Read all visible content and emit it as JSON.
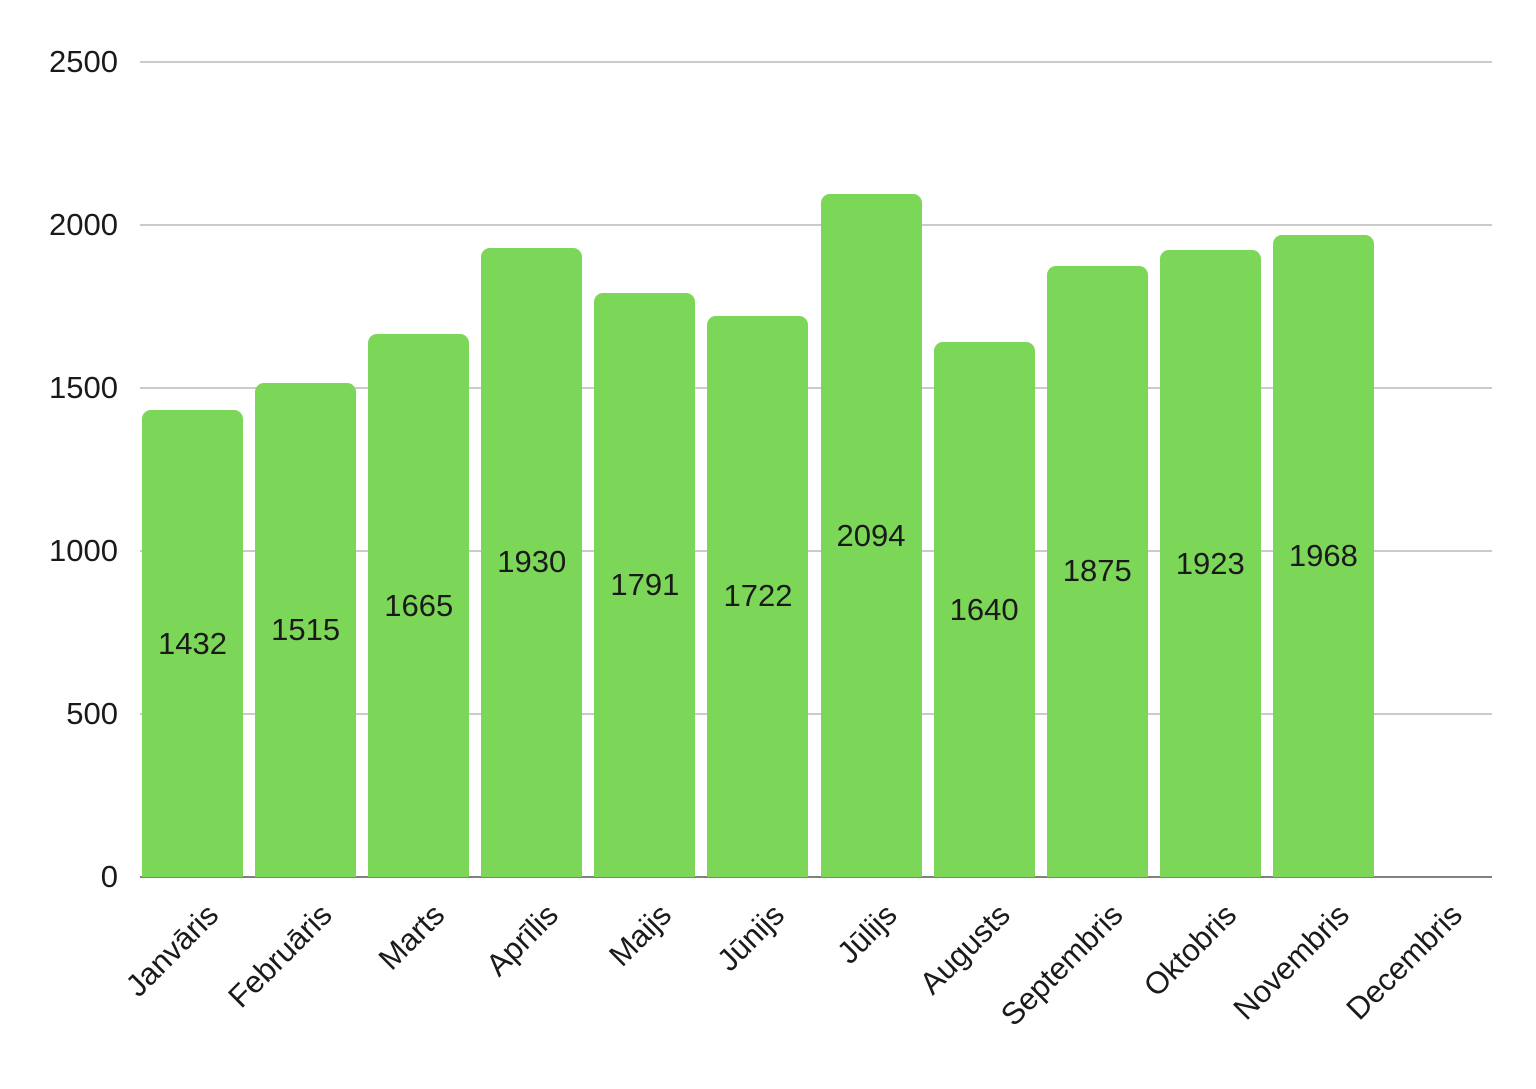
{
  "chart_data": {
    "type": "bar",
    "title": "",
    "xlabel": "",
    "ylabel": "",
    "categories": [
      "Janvāris",
      "Februāris",
      "Marts",
      "Aprīlis",
      "Maijs",
      "Jūnijs",
      "Jūlijs",
      "Augusts",
      "Septembris",
      "Oktobris",
      "Novembris",
      "Decembris"
    ],
    "values": [
      1432,
      1515,
      1665,
      1930,
      1791,
      1722,
      2094,
      1640,
      1875,
      1923,
      1968,
      null
    ],
    "data_labels": [
      "1432",
      "1515",
      "1665",
      "1930",
      "1791",
      "1722",
      "2094",
      "1640",
      "1875",
      "1923",
      "1968",
      ""
    ],
    "ylim": [
      0,
      2500
    ],
    "yticks": [
      0,
      500,
      1000,
      1500,
      2000,
      2500
    ],
    "ytick_labels": [
      "0",
      "500",
      "1000",
      "1500",
      "2000",
      "2500"
    ],
    "grid": "horizontal",
    "legend": "none",
    "colors": {
      "bar": "#7cd657",
      "value_label_text": "#1a1a1a",
      "axis_text": "#1a1a1a",
      "gridline": "#cbcbcb",
      "baseline": "#808080",
      "background": "#ffffff"
    }
  }
}
